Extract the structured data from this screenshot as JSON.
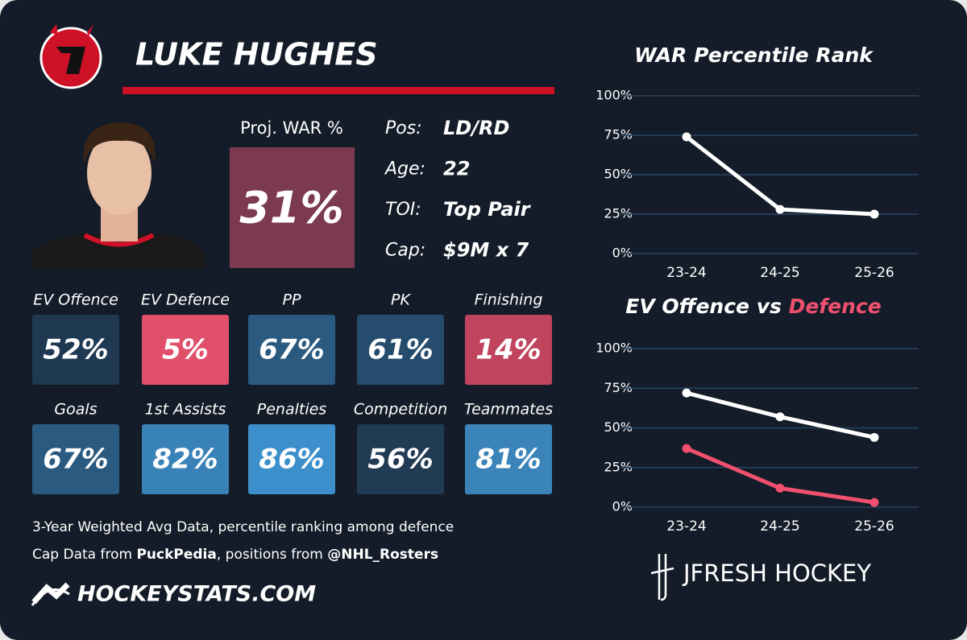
{
  "player": {
    "name": "LUKE HUGHES",
    "war_label": "Proj. WAR %",
    "war_value": "31%",
    "war_color": "#7b3a50",
    "bio": [
      {
        "label": "Pos:",
        "value": "LD/RD"
      },
      {
        "label": "Age:",
        "value": "22"
      },
      {
        "label": "TOI:",
        "value": "Top Pair"
      },
      {
        "label": "Cap:",
        "value": "$9M x 7"
      }
    ]
  },
  "tiles": [
    {
      "label": "EV Offence",
      "value": "52%",
      "color": "#1f3953"
    },
    {
      "label": "EV Defence",
      "value": "5%",
      "color": "#e0506a"
    },
    {
      "label": "PP",
      "value": "67%",
      "color": "#2a5a80"
    },
    {
      "label": "PK",
      "value": "61%",
      "color": "#264c6d"
    },
    {
      "label": "Finishing",
      "value": "14%",
      "color": "#c1445e"
    },
    {
      "label": "Goals",
      "value": "67%",
      "color": "#2a5a80"
    },
    {
      "label": "1st Assists",
      "value": "82%",
      "color": "#3982b8"
    },
    {
      "label": "Penalties",
      "value": "86%",
      "color": "#3c8fca"
    },
    {
      "label": "Competition",
      "value": "56%",
      "color": "#213b54"
    },
    {
      "label": "Teammates",
      "value": "81%",
      "color": "#3a84ba"
    }
  ],
  "footer": {
    "note": "3-Year Weighted Avg Data, percentile ranking among defence",
    "cap_prefix": "Cap Data from",
    "cap_source": "PuckPedia",
    "pos_prefix": ", positions from",
    "pos_source": "@NHL_Rosters",
    "site": "HOCKEYSTATS.COM",
    "brand": "JFRESH HOCKEY"
  },
  "chart_data": [
    {
      "type": "line",
      "title": "WAR Percentile Rank",
      "categories": [
        "23-24",
        "24-25",
        "25-26"
      ],
      "series": [
        {
          "color": "#ffffff",
          "values": [
            74,
            28,
            25
          ]
        }
      ],
      "ylim": [
        0,
        100
      ],
      "yticks": [
        {
          "value": 0,
          "label": "0%"
        },
        {
          "value": 25,
          "label": "25%"
        },
        {
          "value": 50,
          "label": "50%"
        },
        {
          "value": 75,
          "label": "75%"
        },
        {
          "value": 100,
          "label": "100%"
        }
      ],
      "grid": true
    },
    {
      "type": "line",
      "title": "EV Offence vs",
      "title_accent": "Defence",
      "accent_color": "#f0506e",
      "categories": [
        "23-24",
        "24-25",
        "25-26"
      ],
      "series": [
        {
          "color": "#ffffff",
          "values": [
            72,
            57,
            44
          ]
        },
        {
          "color": "#f0506e",
          "values": [
            37,
            12,
            3
          ]
        }
      ],
      "ylim": [
        0,
        100
      ],
      "yticks": [
        {
          "value": 0,
          "label": "0%"
        },
        {
          "value": 25,
          "label": "25%"
        },
        {
          "value": 50,
          "label": "50%"
        },
        {
          "value": 75,
          "label": "75%"
        },
        {
          "value": 100,
          "label": "100%"
        }
      ],
      "grid": true
    }
  ]
}
